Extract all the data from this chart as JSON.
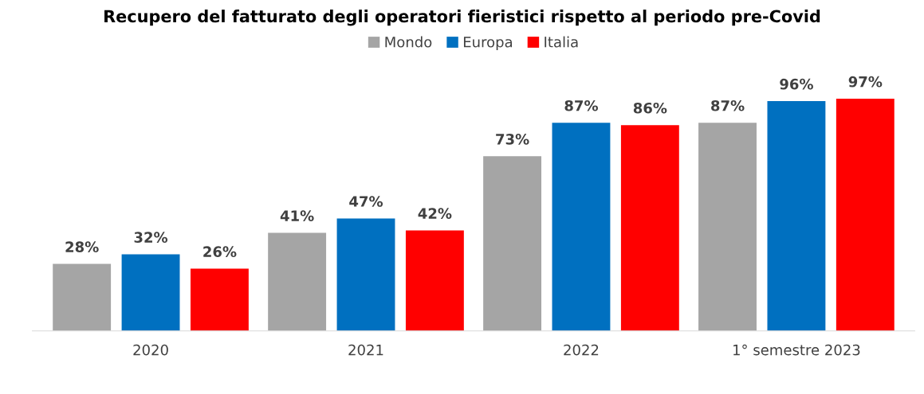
{
  "chart_data": {
    "type": "bar",
    "title": "Recupero del fatturato degli operatori fieristici rispetto al periodo pre-Covid",
    "categories": [
      "2020",
      "2021",
      "2022",
      "1° semestre 2023"
    ],
    "series": [
      {
        "name": "Mondo",
        "color": "#a5a5a5",
        "values": [
          28,
          41,
          73,
          87
        ],
        "value_labels": [
          "28%",
          "41%",
          "73%",
          "87%"
        ]
      },
      {
        "name": "Europa",
        "color": "#0070c0",
        "values": [
          32,
          47,
          87,
          96
        ],
        "value_labels": [
          "32%",
          "47%",
          "87%",
          "96%"
        ]
      },
      {
        "name": "Italia",
        "color": "#ff0000",
        "values": [
          26,
          42,
          86,
          97
        ],
        "value_labels": [
          "26%",
          "42%",
          "86%",
          "97%"
        ]
      }
    ],
    "legend": "top",
    "grid": false
  }
}
